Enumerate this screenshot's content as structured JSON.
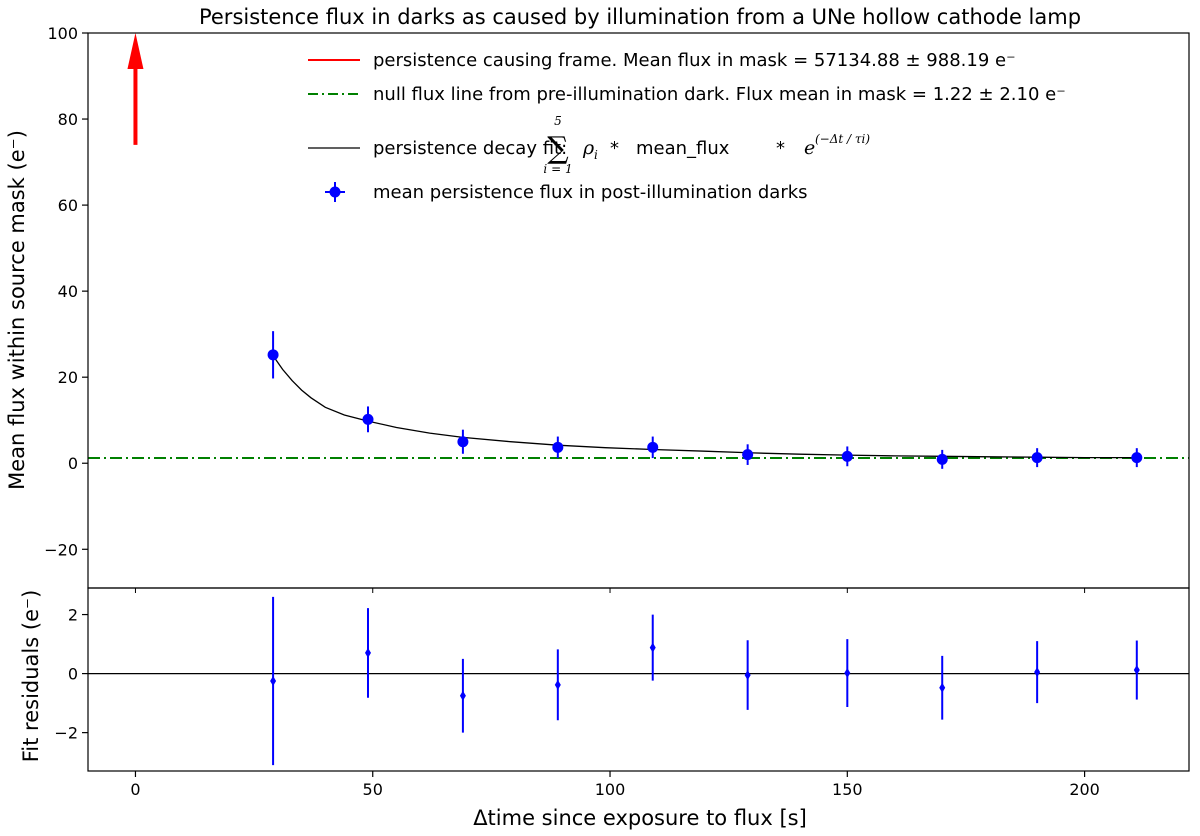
{
  "chart_data": [
    {
      "type": "scatter",
      "panel": "main",
      "title": "Persistence flux in darks as caused by illumination from a UNe hollow cathode lamp",
      "ylabel": "Mean flux within source mask (e⁻)",
      "xlim": [
        -10,
        222
      ],
      "ylim": [
        -29,
        100
      ],
      "xticks": [
        0,
        50,
        100,
        150,
        200
      ],
      "yticks": [
        -20,
        0,
        20,
        40,
        60,
        80,
        100
      ],
      "ytick_labels": [
        "−20",
        "0",
        "20",
        "40",
        "60",
        "80",
        "100"
      ],
      "grid": false,
      "legend_placement": "upper-right",
      "series": [
        {
          "name": "persistence causing frame. Mean flux in mask = 57134.88 ± 988.19 e⁻",
          "kind": "arrow",
          "color": "#ff0000",
          "x": 0,
          "y_from": 74,
          "y_to": 100
        },
        {
          "name": "null flux line from pre-illumination dark.  Flux mean in mask = 1.22 ± 2.10 e⁻",
          "kind": "hline",
          "color": "#008000",
          "y": 1.22
        },
        {
          "name": "persistence decay fit:",
          "kind": "curve",
          "color": "#000000",
          "x": [
            29,
            31,
            33,
            35,
            37,
            40,
            44,
            49,
            55,
            62,
            69,
            79,
            89,
            99,
            109,
            120,
            130,
            140,
            150,
            160,
            170,
            180,
            190,
            200,
            211
          ],
          "y": [
            25.0,
            21.8,
            19.2,
            17.0,
            15.2,
            13.0,
            11.2,
            9.8,
            8.3,
            7.0,
            6.0,
            5.0,
            4.2,
            3.6,
            3.2,
            2.8,
            2.4,
            2.1,
            1.9,
            1.7,
            1.6,
            1.5,
            1.4,
            1.3,
            1.3
          ]
        },
        {
          "name": "mean persistence flux in post-illumination darks",
          "kind": "errorbar",
          "color": "#0000ff",
          "x": [
            29,
            49,
            69,
            89,
            109,
            129,
            150,
            170,
            190,
            211
          ],
          "y": [
            25.2,
            10.2,
            5.0,
            3.7,
            3.7,
            2.0,
            1.6,
            0.9,
            1.3,
            1.3
          ],
          "yerr": [
            5.5,
            3.0,
            2.8,
            2.5,
            2.5,
            2.4,
            2.3,
            2.2,
            2.2,
            2.2
          ]
        }
      ],
      "legend_formula": {
        "sum_symbol": "∑",
        "upper": "5",
        "lower": "i = 1",
        "rho": "ρ",
        "rho_sub": "i",
        "times": "*",
        "mean_flux": "mean_flux",
        "e": "e",
        "exponent": "(−Δt / τi)"
      }
    },
    {
      "type": "scatter",
      "panel": "residuals",
      "xlabel": "Δtime since exposure to flux [s]",
      "ylabel": "Fit residuals (e⁻)",
      "xlim": [
        -10,
        222
      ],
      "ylim": [
        -3.3,
        2.9
      ],
      "xticks": [
        0,
        50,
        100,
        150,
        200
      ],
      "yticks": [
        -2,
        0,
        2
      ],
      "ytick_labels": [
        "−2",
        "0",
        "2"
      ],
      "zero_line": 0,
      "series": [
        {
          "kind": "errorbar",
          "color": "#0000ff",
          "x": [
            29,
            49,
            69,
            89,
            109,
            129,
            150,
            170,
            190,
            211
          ],
          "y": [
            -0.25,
            0.7,
            -0.75,
            -0.38,
            0.88,
            -0.05,
            0.02,
            -0.48,
            0.05,
            0.12
          ],
          "yerr": [
            2.85,
            1.52,
            1.25,
            1.2,
            1.12,
            1.18,
            1.15,
            1.08,
            1.05,
            1.0
          ]
        }
      ]
    }
  ]
}
